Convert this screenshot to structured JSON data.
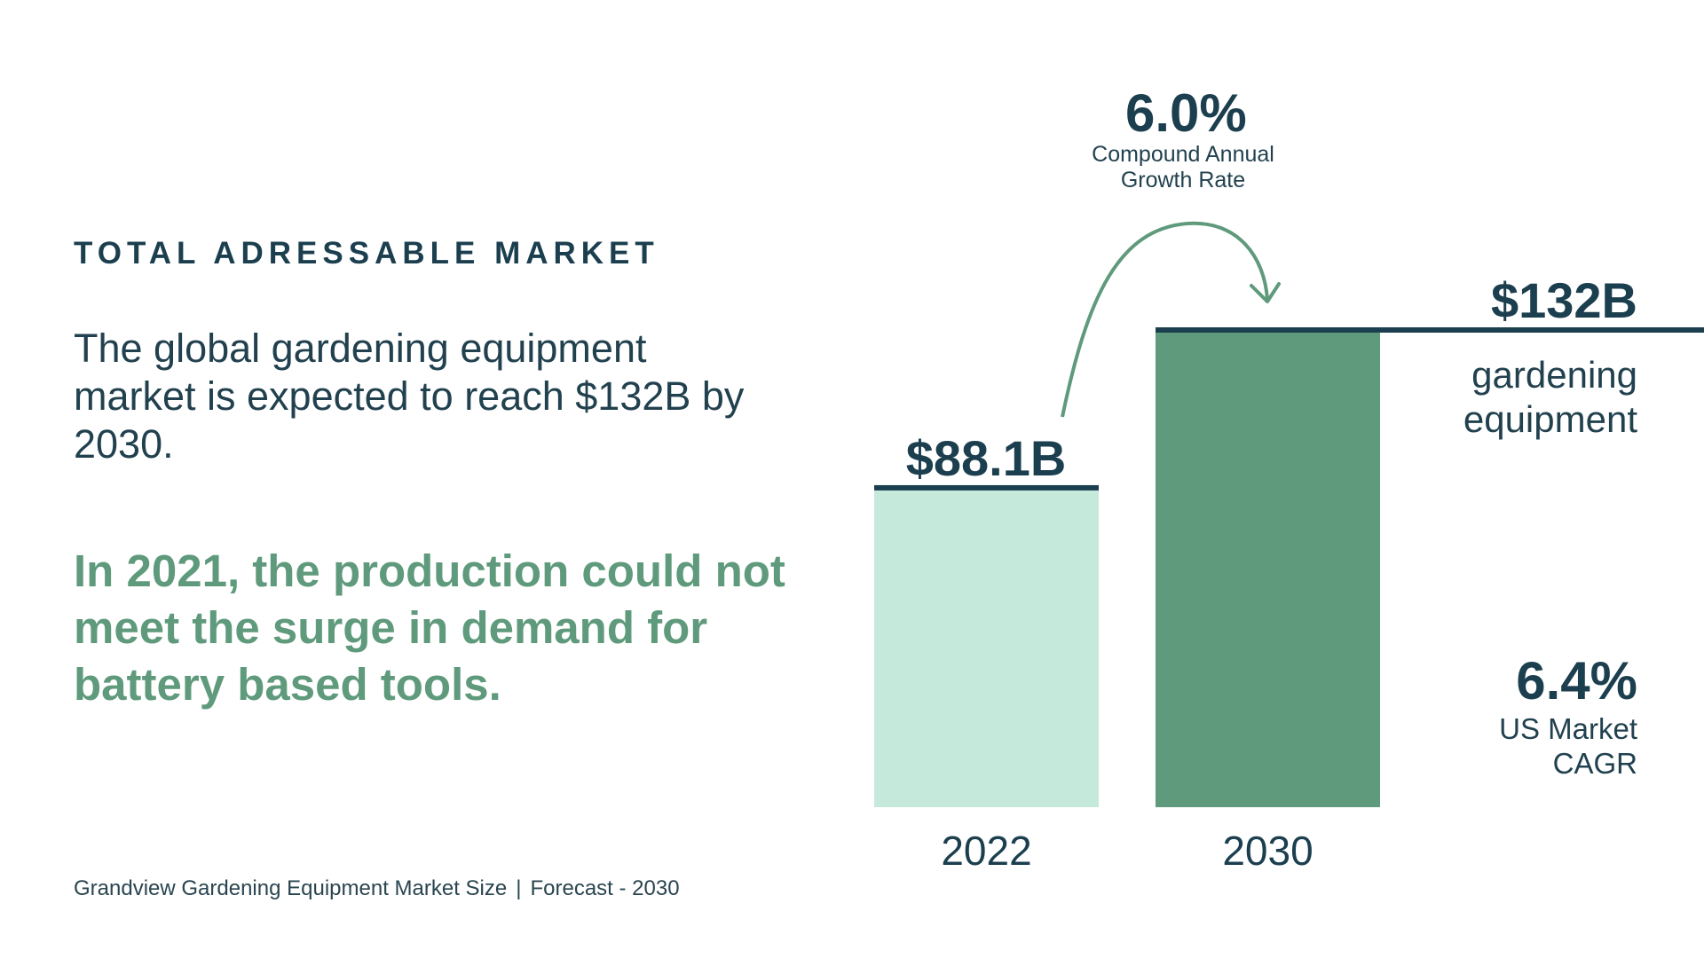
{
  "heading": "TOTAL ADRESSABLE MARKET",
  "lead": "The global gardening equipment market is expected to reach $132B by 2030.",
  "highlight": "In 2021, the production could not meet the surge in demand for battery based tools.",
  "source": {
    "left": "Grandview Gardening Equipment Market Size",
    "separator": "|",
    "right": "Forecast - 2030"
  },
  "cagr_global": {
    "value": "6.0%",
    "label_line1": "Compound Annual",
    "label_line2": "Growth Rate"
  },
  "end_value": {
    "value": "$132B",
    "label_line1": "gardening",
    "label_line2": "equipment"
  },
  "cagr_us": {
    "value": "6.4%",
    "label_line1": "US Market",
    "label_line2": "CAGR"
  },
  "colors": {
    "dark": "#1c3f4f",
    "bar_2022": "#c5eadb",
    "bar_2030": "#5f9a7c",
    "arrow": "#5f9a7c",
    "highlight": "#5f9a7c"
  },
  "chart_data": {
    "type": "bar",
    "categories": [
      "2022",
      "2030"
    ],
    "values": [
      88.1,
      132
    ],
    "data_labels": [
      "$88.1B",
      "$132B"
    ],
    "unit": "billion USD",
    "ylim": [
      0,
      132
    ],
    "grid": false,
    "legend": "none"
  }
}
